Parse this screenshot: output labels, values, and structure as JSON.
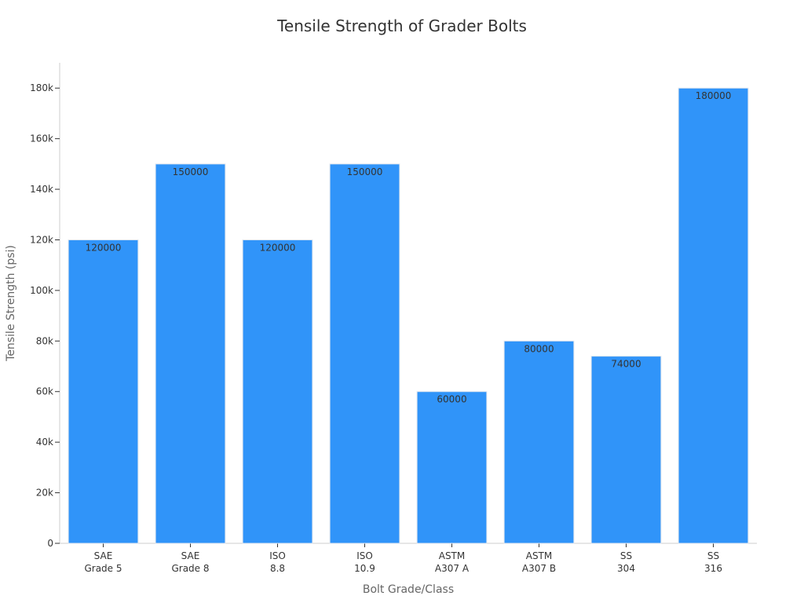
{
  "chart_data": {
    "type": "bar",
    "title": "Tensile Strength of Grader Bolts",
    "xlabel": "Bolt Grade/Class",
    "ylabel": "Tensile Strength (psi)",
    "categories": [
      [
        "SAE",
        "Grade 5"
      ],
      [
        "SAE",
        "Grade 8"
      ],
      [
        "ISO",
        "8.8"
      ],
      [
        "ISO",
        "10.9"
      ],
      [
        "ASTM",
        "A307 A"
      ],
      [
        "ASTM",
        "A307 B"
      ],
      [
        "SS",
        "304"
      ],
      [
        "SS",
        "316"
      ]
    ],
    "values": [
      120000,
      150000,
      120000,
      150000,
      60000,
      80000,
      74000,
      180000
    ],
    "data_labels": [
      "120000",
      "150000",
      "120000",
      "150000",
      "60000",
      "80000",
      "74000",
      "180000"
    ],
    "ylim": [
      0,
      190000
    ],
    "yticks": [
      0,
      20000,
      40000,
      60000,
      80000,
      100000,
      120000,
      140000,
      160000,
      180000
    ],
    "ytick_labels": [
      "0",
      "20k",
      "40k",
      "60k",
      "80k",
      "100k",
      "120k",
      "140k",
      "160k",
      "180k"
    ],
    "bar_color": "#3094f9",
    "grid": false
  }
}
